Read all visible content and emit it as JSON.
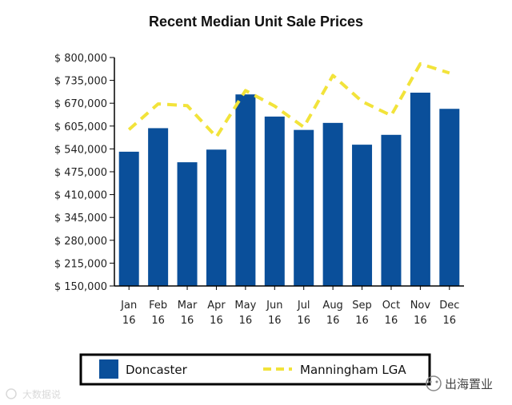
{
  "chart_data": {
    "type": "bar",
    "title": "Recent Median Unit Sale Prices",
    "categories": [
      [
        "Jan",
        "16"
      ],
      [
        "Feb",
        "16"
      ],
      [
        "Mar",
        "16"
      ],
      [
        "Apr",
        "16"
      ],
      [
        "May",
        "16"
      ],
      [
        "Jun",
        "16"
      ],
      [
        "Jul",
        "16"
      ],
      [
        "Aug",
        "16"
      ],
      [
        "Sep",
        "16"
      ],
      [
        "Oct",
        "16"
      ],
      [
        "Nov",
        "16"
      ],
      [
        "Dec",
        "16"
      ]
    ],
    "ylim": [
      150000,
      800000
    ],
    "yticks": [
      "$ 800,000",
      "$ 735,000",
      "$ 670,000",
      "$ 605,000",
      "$ 540,000",
      "$ 475,000",
      "$ 410,000",
      "$ 345,000",
      "$ 280,000",
      "$ 215,000",
      "$ 150,000"
    ],
    "ytick_values": [
      800000,
      735000,
      670000,
      605000,
      540000,
      475000,
      410000,
      345000,
      280000,
      215000,
      150000
    ],
    "series": [
      {
        "name": "Doncaster",
        "kind": "bar",
        "color": "#0a4f9a",
        "values": [
          532000,
          599000,
          502000,
          538000,
          695000,
          632000,
          594000,
          614000,
          552000,
          580000,
          700000,
          654000
        ]
      },
      {
        "name": "Manningham LGA",
        "kind": "line",
        "style": "dashed",
        "color": "#f2e33a",
        "values": [
          595000,
          668000,
          663000,
          574000,
          706000,
          662000,
          602000,
          749000,
          675000,
          635000,
          782000,
          756000
        ]
      }
    ],
    "legend": {
      "position": "bottom"
    }
  },
  "watermark": {
    "left_text": "大数据说",
    "right_text": "出海置业"
  }
}
